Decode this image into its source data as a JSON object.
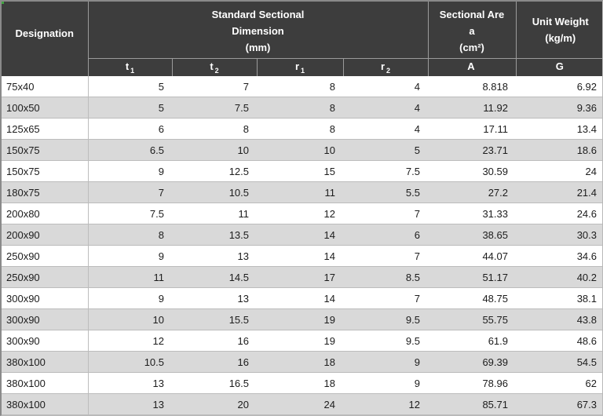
{
  "table": {
    "header": {
      "designation": "Designation",
      "dimension_lines": [
        "Standard Sectional",
        "Dimension",
        "(mm)"
      ],
      "area_lines": [
        "Sectional Are",
        "a",
        "(cm²)"
      ],
      "weight_lines": [
        "Unit Weight",
        "(kg/m)"
      ]
    },
    "subheader": [
      {
        "main": "t",
        "sub": "1"
      },
      {
        "main": "t",
        "sub": "2"
      },
      {
        "main": "r",
        "sub": "1"
      },
      {
        "main": "r",
        "sub": "2"
      },
      {
        "main": "A",
        "sub": ""
      },
      {
        "main": "G",
        "sub": ""
      }
    ],
    "rows": [
      {
        "designation": "75x40",
        "t1": "5",
        "t2": "7",
        "r1": "8",
        "r2": "4",
        "a": "8.818",
        "g": "6.92"
      },
      {
        "designation": "100x50",
        "t1": "5",
        "t2": "7.5",
        "r1": "8",
        "r2": "4",
        "a": "11.92",
        "g": "9.36"
      },
      {
        "designation": "125x65",
        "t1": "6",
        "t2": "8",
        "r1": "8",
        "r2": "4",
        "a": "17.11",
        "g": "13.4"
      },
      {
        "designation": "150x75",
        "t1": "6.5",
        "t2": "10",
        "r1": "10",
        "r2": "5",
        "a": "23.71",
        "g": "18.6"
      },
      {
        "designation": "150x75",
        "t1": "9",
        "t2": "12.5",
        "r1": "15",
        "r2": "7.5",
        "a": "30.59",
        "g": "24"
      },
      {
        "designation": "180x75",
        "t1": "7",
        "t2": "10.5",
        "r1": "11",
        "r2": "5.5",
        "a": "27.2",
        "g": "21.4"
      },
      {
        "designation": "200x80",
        "t1": "7.5",
        "t2": "11",
        "r1": "12",
        "r2": "7",
        "a": "31.33",
        "g": "24.6"
      },
      {
        "designation": "200x90",
        "t1": "8",
        "t2": "13.5",
        "r1": "14",
        "r2": "6",
        "a": "38.65",
        "g": "30.3"
      },
      {
        "designation": "250x90",
        "t1": "9",
        "t2": "13",
        "r1": "14",
        "r2": "7",
        "a": "44.07",
        "g": "34.6"
      },
      {
        "designation": "250x90",
        "t1": "11",
        "t2": "14.5",
        "r1": "17",
        "r2": "8.5",
        "a": "51.17",
        "g": "40.2"
      },
      {
        "designation": "300x90",
        "t1": "9",
        "t2": "13",
        "r1": "14",
        "r2": "7",
        "a": "48.75",
        "g": "38.1"
      },
      {
        "designation": "300x90",
        "t1": "10",
        "t2": "15.5",
        "r1": "19",
        "r2": "9.5",
        "a": "55.75",
        "g": "43.8"
      },
      {
        "designation": "300x90",
        "t1": "12",
        "t2": "16",
        "r1": "19",
        "r2": "9.5",
        "a": "61.9",
        "g": "48.6"
      },
      {
        "designation": "380x100",
        "t1": "10.5",
        "t2": "16",
        "r1": "18",
        "r2": "9",
        "a": "69.39",
        "g": "54.5"
      },
      {
        "designation": "380x100",
        "t1": "13",
        "t2": "16.5",
        "r1": "18",
        "r2": "9",
        "a": "78.96",
        "g": "62"
      },
      {
        "designation": "380x100",
        "t1": "13",
        "t2": "20",
        "r1": "24",
        "r2": "12",
        "a": "85.71",
        "g": "67.3"
      }
    ]
  },
  "colors": {
    "header_bg": "#3d3d3d",
    "header_text": "#ffffff",
    "header_border": "#9b9b9b",
    "row_bg": "#ffffff",
    "row_alt_bg": "#d9d9d9",
    "row_border": "#bcbcbc",
    "outer_border": "#8a8a8a",
    "data_text": "#1c1c1c",
    "corner_accent": "#3fa43f"
  }
}
